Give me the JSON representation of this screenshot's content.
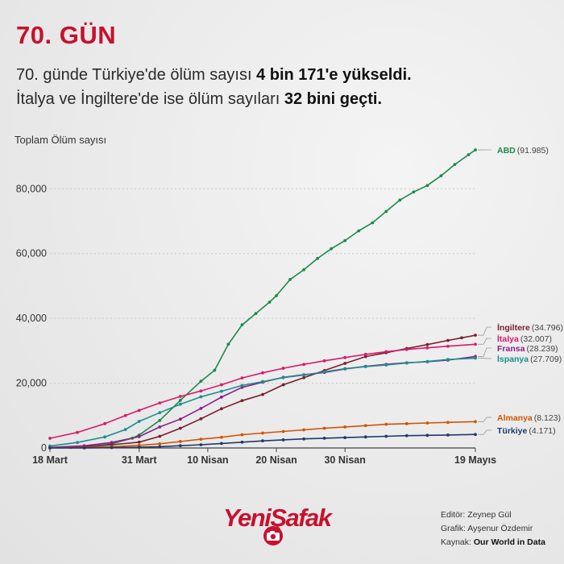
{
  "header": {
    "title": "70. GÜN",
    "subtitle_line1_a": "70. günde Türkiye'de ölüm sayısı ",
    "subtitle_line1_b": "4 bin 171'e yükseldi.",
    "subtitle_line2_a": "İtalya ve İngiltere'de ise ölüm sayıları ",
    "subtitle_line2_b": "32 bini geçti."
  },
  "chart_data": {
    "type": "line",
    "ylabel": "Toplam Ölüm sayısı",
    "ylim": [
      0,
      92000
    ],
    "yticks": [
      0,
      20000,
      40000,
      60000,
      80000
    ],
    "ytick_labels": [
      "0",
      "20,000",
      "40,000",
      "60,000",
      "80,000"
    ],
    "xlim": [
      0,
      62
    ],
    "xticks": [
      0,
      13,
      23,
      33,
      43,
      62
    ],
    "xtick_labels": [
      "18 Mart",
      "31 Mart",
      "10 Nisan",
      "20 Nisan",
      "30 Nisan",
      "19 Mayıs"
    ],
    "grid": true,
    "series": [
      {
        "name": "ABD",
        "value_label": "(91.985)",
        "color": "#1b8a4a",
        "points": [
          [
            0,
            108
          ],
          [
            3,
            200
          ],
          [
            6,
            470
          ],
          [
            9,
            1300
          ],
          [
            12,
            3000
          ],
          [
            13,
            4000
          ],
          [
            16,
            8500
          ],
          [
            19,
            14700
          ],
          [
            22,
            20600
          ],
          [
            24,
            24000
          ],
          [
            26,
            32000
          ],
          [
            28,
            38000
          ],
          [
            30,
            41500
          ],
          [
            32,
            45000
          ],
          [
            33,
            47000
          ],
          [
            35,
            52000
          ],
          [
            37,
            55000
          ],
          [
            39,
            58500
          ],
          [
            41,
            61500
          ],
          [
            43,
            64000
          ],
          [
            45,
            67000
          ],
          [
            47,
            69500
          ],
          [
            49,
            73000
          ],
          [
            51,
            76500
          ],
          [
            53,
            79000
          ],
          [
            55,
            81000
          ],
          [
            57,
            84000
          ],
          [
            59,
            87500
          ],
          [
            61,
            90500
          ],
          [
            62,
            91985
          ]
        ]
      },
      {
        "name": "İngiltere",
        "value_label": "(34.796)",
        "color": "#7a1f2b",
        "points": [
          [
            0,
            104
          ],
          [
            5,
            400
          ],
          [
            9,
            1000
          ],
          [
            13,
            1800
          ],
          [
            16,
            3600
          ],
          [
            19,
            6100
          ],
          [
            22,
            9000
          ],
          [
            25,
            12100
          ],
          [
            28,
            14600
          ],
          [
            31,
            16500
          ],
          [
            34,
            19500
          ],
          [
            37,
            21700
          ],
          [
            40,
            23900
          ],
          [
            43,
            26100
          ],
          [
            46,
            28200
          ],
          [
            49,
            29400
          ],
          [
            52,
            30700
          ],
          [
            55,
            31900
          ],
          [
            58,
            33200
          ],
          [
            60,
            34000
          ],
          [
            62,
            34796
          ]
        ]
      },
      {
        "name": "İtalya",
        "value_label": "(32.007)",
        "color": "#d81b6a",
        "points": [
          [
            0,
            2978
          ],
          [
            4,
            4800
          ],
          [
            8,
            7500
          ],
          [
            11,
            10000
          ],
          [
            13,
            11600
          ],
          [
            16,
            13900
          ],
          [
            19,
            15900
          ],
          [
            22,
            17600
          ],
          [
            25,
            19500
          ],
          [
            28,
            21600
          ],
          [
            31,
            23200
          ],
          [
            34,
            24600
          ],
          [
            37,
            25800
          ],
          [
            40,
            26900
          ],
          [
            43,
            27900
          ],
          [
            46,
            28900
          ],
          [
            49,
            29700
          ],
          [
            52,
            30400
          ],
          [
            55,
            30900
          ],
          [
            58,
            31400
          ],
          [
            62,
            32007
          ]
        ]
      },
      {
        "name": "Fransa",
        "value_label": "(28.239)",
        "color": "#8a1f8a",
        "points": [
          [
            0,
            175
          ],
          [
            5,
            670
          ],
          [
            9,
            1700
          ],
          [
            13,
            3500
          ],
          [
            16,
            6500
          ],
          [
            19,
            8900
          ],
          [
            22,
            12200
          ],
          [
            25,
            15700
          ],
          [
            28,
            18700
          ],
          [
            31,
            20300
          ],
          [
            34,
            21800
          ],
          [
            37,
            22600
          ],
          [
            40,
            23300
          ],
          [
            43,
            24400
          ],
          [
            46,
            25200
          ],
          [
            49,
            25800
          ],
          [
            52,
            26300
          ],
          [
            55,
            26600
          ],
          [
            58,
            27100
          ],
          [
            62,
            28239
          ]
        ]
      },
      {
        "name": "İspanya",
        "value_label": "(27.709)",
        "color": "#1c8f8f",
        "points": [
          [
            0,
            600
          ],
          [
            4,
            1700
          ],
          [
            8,
            3400
          ],
          [
            11,
            5700
          ],
          [
            13,
            8200
          ],
          [
            16,
            10900
          ],
          [
            19,
            13500
          ],
          [
            22,
            15800
          ],
          [
            25,
            17500
          ],
          [
            28,
            19300
          ],
          [
            31,
            20500
          ],
          [
            34,
            21700
          ],
          [
            37,
            22500
          ],
          [
            40,
            23500
          ],
          [
            43,
            24500
          ],
          [
            46,
            25100
          ],
          [
            49,
            25600
          ],
          [
            52,
            26200
          ],
          [
            55,
            26700
          ],
          [
            58,
            27300
          ],
          [
            62,
            27709
          ]
        ]
      },
      {
        "name": "Almanya",
        "value_label": "(8.123)",
        "color": "#d35400",
        "points": [
          [
            0,
            20
          ],
          [
            5,
            150
          ],
          [
            9,
            400
          ],
          [
            13,
            800
          ],
          [
            16,
            1300
          ],
          [
            19,
            2000
          ],
          [
            22,
            2700
          ],
          [
            25,
            3300
          ],
          [
            28,
            4100
          ],
          [
            31,
            4600
          ],
          [
            34,
            5100
          ],
          [
            37,
            5600
          ],
          [
            40,
            6100
          ],
          [
            43,
            6500
          ],
          [
            46,
            6900
          ],
          [
            49,
            7300
          ],
          [
            52,
            7500
          ],
          [
            55,
            7700
          ],
          [
            58,
            7900
          ],
          [
            62,
            8123
          ]
        ]
      },
      {
        "name": "Türkiye",
        "value_label": "(4.171)",
        "color": "#1f3a6b",
        "points": [
          [
            0,
            1
          ],
          [
            5,
            30
          ],
          [
            9,
            110
          ],
          [
            13,
            220
          ],
          [
            16,
            400
          ],
          [
            19,
            700
          ],
          [
            22,
            1000
          ],
          [
            25,
            1400
          ],
          [
            28,
            1800
          ],
          [
            31,
            2200
          ],
          [
            34,
            2500
          ],
          [
            37,
            2800
          ],
          [
            40,
            3000
          ],
          [
            43,
            3200
          ],
          [
            46,
            3400
          ],
          [
            49,
            3600
          ],
          [
            52,
            3800
          ],
          [
            55,
            3900
          ],
          [
            58,
            4000
          ],
          [
            62,
            4171
          ]
        ]
      }
    ]
  },
  "credits": {
    "editor_label": "Editör: ",
    "editor_name": "Zeynep Gül",
    "graphic_label": "Grafik: ",
    "graphic_name": "Ayşenur Özdemir",
    "source_label": "Kaynak: ",
    "source_name": "Our World in Data"
  },
  "logo": {
    "text": "YeniŞafak",
    "icon": "camera-icon"
  }
}
